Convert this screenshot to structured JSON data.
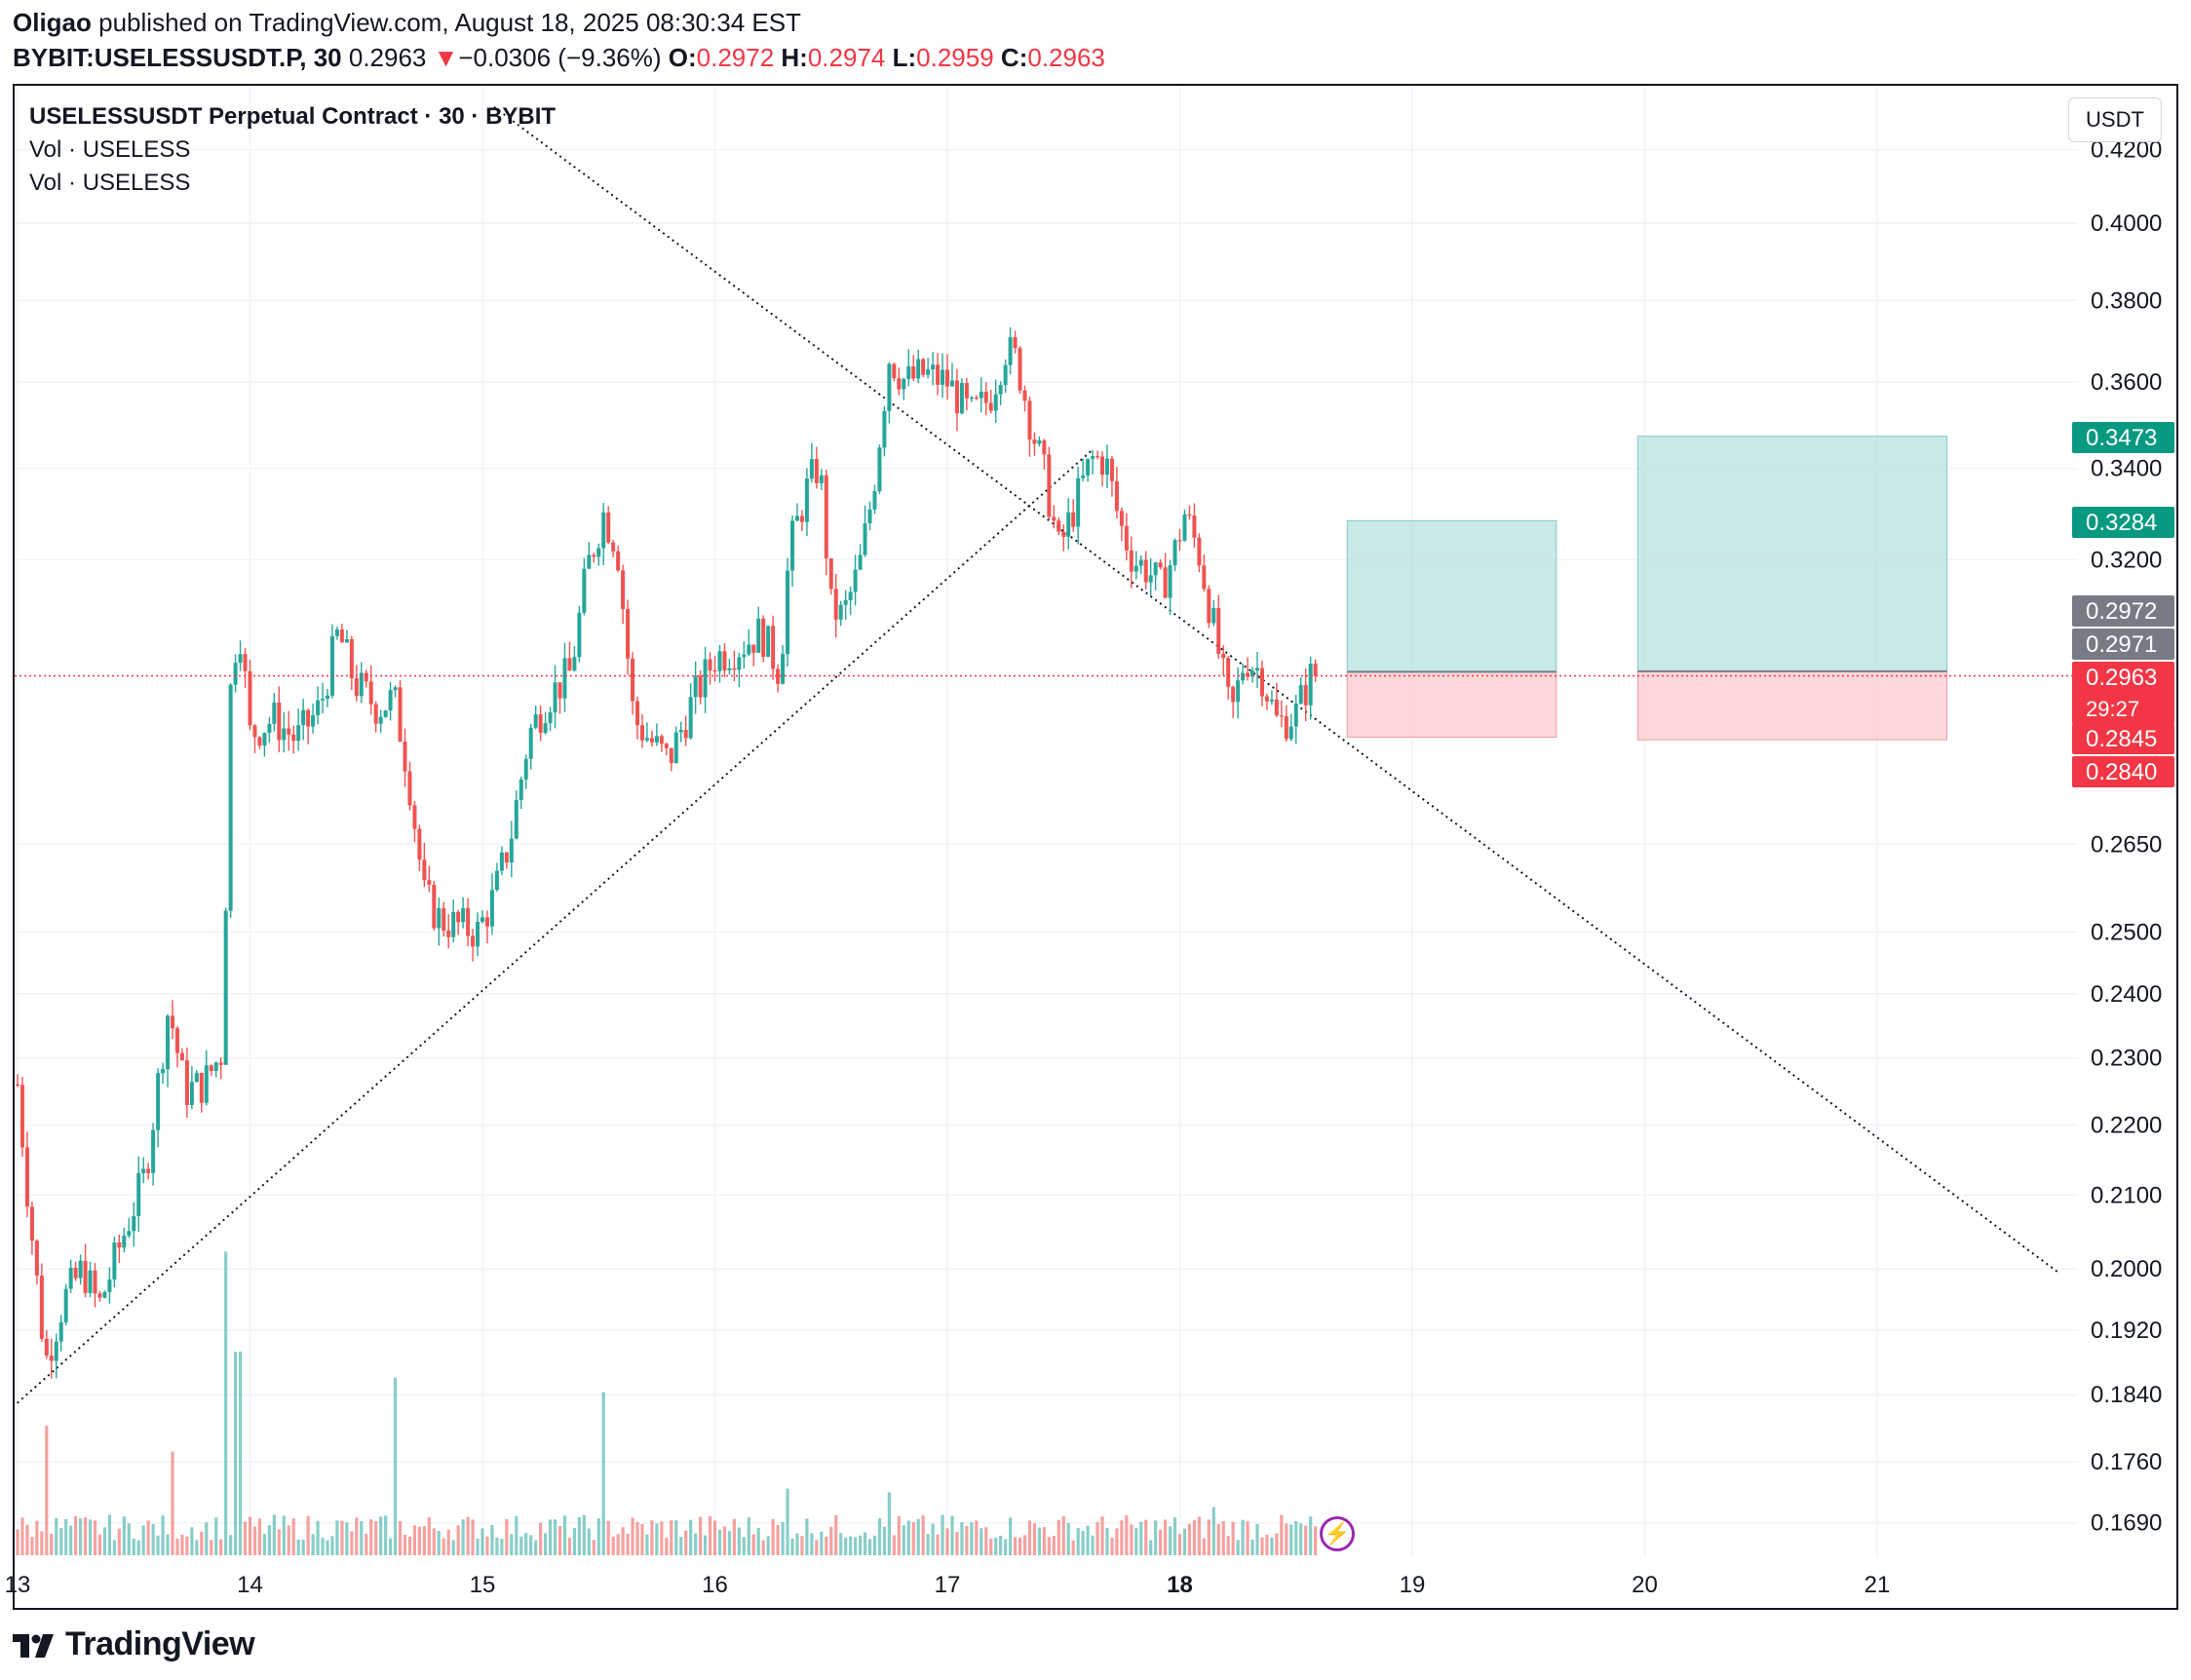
{
  "header": {
    "author": "Oligao",
    "published_text": "published on TradingView.com, August 18, 2025 08:30:34 EST",
    "symbol": "BYBIT:USELESSUSDT.P, 30",
    "last": "0.2963",
    "arrow": "▼",
    "change": "−0.0306 (−9.36%)",
    "o_label": "O:",
    "o_value": "0.2972",
    "h_label": "H:",
    "h_value": "0.2974",
    "l_label": "L:",
    "l_value": "0.2959",
    "c_label": "C:",
    "c_value": "0.2963"
  },
  "legend": {
    "title": "USELESSUSDT Perpetual Contract · 30 · BYBIT",
    "vol1": "Vol · USELESS",
    "vol2": "Vol · USELESS"
  },
  "currency_button": "USDT",
  "brand": "TradingView",
  "colors": {
    "up": "#26a69a",
    "down": "#ef5350",
    "profit_zone": "#b2dfdb",
    "loss_zone": "#ffcdd2",
    "last_price": "#f23645",
    "target": "#089981",
    "gray": "#787b86"
  },
  "chart_data": {
    "type": "candlestick",
    "title": "USELESSUSDT Perpetual Contract · 30 · BYBIT",
    "price_scale": "log",
    "y_ticks": [
      "0.4200",
      "0.4000",
      "0.3800",
      "0.3600",
      "0.3400",
      "0.3200",
      "0.2650",
      "0.2500",
      "0.2400",
      "0.2300",
      "0.2200",
      "0.2100",
      "0.2000",
      "0.1920",
      "0.1840",
      "0.1760",
      "0.1690"
    ],
    "x_ticks": [
      "13",
      "14",
      "15",
      "16",
      "17",
      "18",
      "19",
      "20",
      "21"
    ],
    "x_range_days": [
      13,
      21.8
    ],
    "y_range": [
      0.167,
      0.43
    ],
    "price_path": [
      [
        13.0,
        0.226
      ],
      [
        13.05,
        0.208
      ],
      [
        13.12,
        0.188
      ],
      [
        13.2,
        0.196
      ],
      [
        13.28,
        0.2
      ],
      [
        13.35,
        0.195
      ],
      [
        13.45,
        0.204
      ],
      [
        13.55,
        0.213
      ],
      [
        13.65,
        0.238
      ],
      [
        13.72,
        0.225
      ],
      [
        13.8,
        0.226
      ],
      [
        13.88,
        0.231
      ],
      [
        13.92,
        0.3
      ],
      [
        13.96,
        0.305
      ],
      [
        14.0,
        0.285
      ],
      [
        14.1,
        0.288
      ],
      [
        14.2,
        0.284
      ],
      [
        14.3,
        0.29
      ],
      [
        14.38,
        0.305
      ],
      [
        14.45,
        0.295
      ],
      [
        14.55,
        0.29
      ],
      [
        14.62,
        0.292
      ],
      [
        14.68,
        0.278
      ],
      [
        14.75,
        0.256
      ],
      [
        14.82,
        0.252
      ],
      [
        14.9,
        0.251
      ],
      [
        14.98,
        0.25
      ],
      [
        15.05,
        0.256
      ],
      [
        15.12,
        0.266
      ],
      [
        15.2,
        0.285
      ],
      [
        15.28,
        0.292
      ],
      [
        15.38,
        0.297
      ],
      [
        15.45,
        0.318
      ],
      [
        15.52,
        0.33
      ],
      [
        15.58,
        0.323
      ],
      [
        15.65,
        0.288
      ],
      [
        15.72,
        0.284
      ],
      [
        15.8,
        0.28
      ],
      [
        15.9,
        0.291
      ],
      [
        16.0,
        0.3
      ],
      [
        16.1,
        0.302
      ],
      [
        16.2,
        0.305
      ],
      [
        16.28,
        0.297
      ],
      [
        16.32,
        0.322
      ],
      [
        16.4,
        0.336
      ],
      [
        16.45,
        0.341
      ],
      [
        16.5,
        0.31
      ],
      [
        16.55,
        0.308
      ],
      [
        16.62,
        0.318
      ],
      [
        16.68,
        0.335
      ],
      [
        16.75,
        0.366
      ],
      [
        16.82,
        0.36
      ],
      [
        16.9,
        0.362
      ],
      [
        17.0,
        0.36
      ],
      [
        17.1,
        0.352
      ],
      [
        17.18,
        0.356
      ],
      [
        17.25,
        0.368
      ],
      [
        17.3,
        0.365
      ],
      [
        17.36,
        0.35
      ],
      [
        17.42,
        0.338
      ],
      [
        17.48,
        0.322
      ],
      [
        17.55,
        0.332
      ],
      [
        17.62,
        0.342
      ],
      [
        17.68,
        0.342
      ],
      [
        17.74,
        0.328
      ],
      [
        17.8,
        0.32
      ],
      [
        17.86,
        0.318
      ],
      [
        17.92,
        0.314
      ],
      [
        17.98,
        0.322
      ],
      [
        18.02,
        0.33
      ],
      [
        18.08,
        0.322
      ],
      [
        18.15,
        0.305
      ],
      [
        18.22,
        0.288
      ],
      [
        18.28,
        0.3
      ],
      [
        18.35,
        0.297
      ],
      [
        18.42,
        0.287
      ],
      [
        18.5,
        0.289
      ],
      [
        18.56,
        0.296
      ],
      [
        18.59,
        0.2963
      ]
    ],
    "volume_spikes": [
      [
        13.13,
        0.35
      ],
      [
        13.67,
        0.28
      ],
      [
        13.9,
        0.82
      ],
      [
        13.95,
        0.55
      ],
      [
        14.62,
        0.48
      ],
      [
        15.52,
        0.44
      ],
      [
        16.32,
        0.18
      ],
      [
        16.75,
        0.17
      ],
      [
        18.15,
        0.13
      ]
    ],
    "trendlines": [
      {
        "style": "dotted",
        "from": [
          12.98,
          0.1825
        ],
        "to": [
          17.62,
          0.344
        ],
        "note": "ascending support"
      },
      {
        "style": "dotted",
        "from": [
          15.05,
          0.432
        ],
        "to": [
          21.78,
          0.1995
        ],
        "note": "descending resistance"
      }
    ],
    "positions": [
      {
        "type": "long",
        "from": 18.72,
        "to": 19.62,
        "entry": 0.2971,
        "target": 0.3284,
        "stop": 0.2845
      },
      {
        "type": "long",
        "from": 19.97,
        "to": 21.3,
        "entry": 0.2972,
        "target": 0.3473,
        "stop": 0.284
      }
    ],
    "price_labels": [
      {
        "value": "0.3473",
        "role": "target"
      },
      {
        "value": "0.3284",
        "role": "target"
      },
      {
        "value": "0.2972",
        "role": "entry"
      },
      {
        "value": "0.2971",
        "role": "entry"
      },
      {
        "value": "0.2963",
        "role": "last",
        "countdown": "29:27"
      },
      {
        "value": "0.2845",
        "role": "stop"
      },
      {
        "value": "0.2840",
        "role": "stop"
      }
    ],
    "last_price": 0.2963
  }
}
